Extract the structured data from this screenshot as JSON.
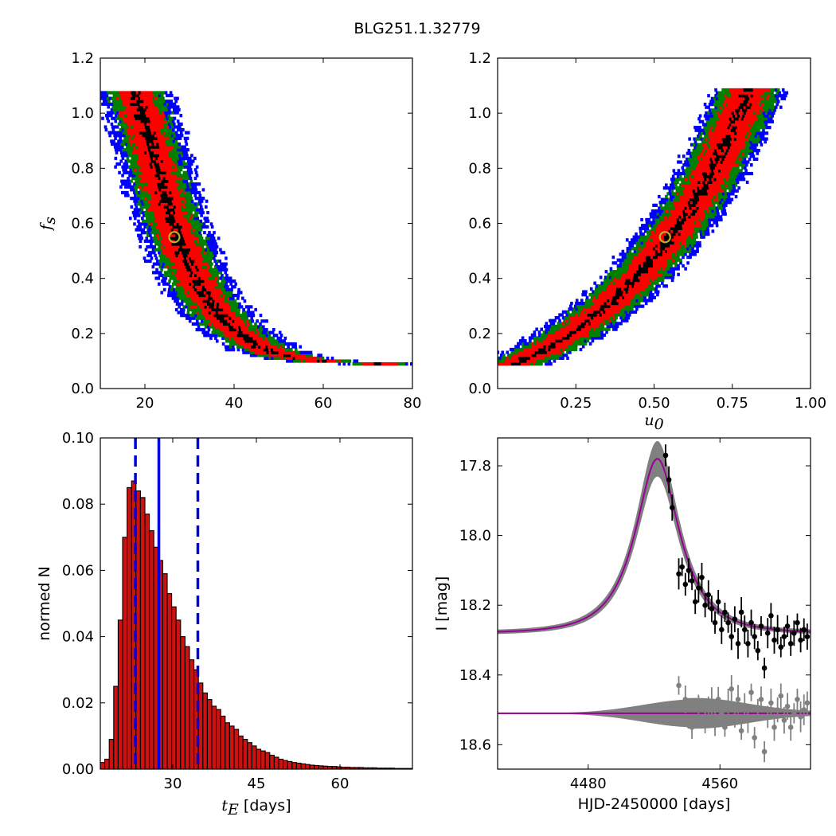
{
  "title": "BLG251.1.32779",
  "colors": {
    "sigma1": "#000000",
    "sigma2": "#ff0000",
    "sigma3": "#008000",
    "sigma4": "#0000ff",
    "best_fit_marker": "#bdb22a",
    "model": "#990099",
    "band": "#808080",
    "hist_fill": "#cc1111",
    "vline": "#0000dd"
  },
  "chart_data": [
    {
      "id": "fs-vs-tE",
      "type": "heatmap",
      "xlabel": "",
      "ylabel": "f_s",
      "xlim": [
        10,
        80
      ],
      "ylim": [
        0,
        1.2
      ],
      "xticks": [
        20,
        40,
        60,
        80
      ],
      "yticks": [
        0.0,
        0.2,
        0.4,
        0.6,
        0.8,
        1.0,
        1.2
      ],
      "ytick_labels": [
        "0.0",
        "0.2",
        "0.4",
        "0.6",
        "0.8",
        "1.0",
        "1.2"
      ],
      "best_fit": {
        "x": 26.6,
        "y": 0.55
      },
      "band_center": [
        [
          17.5,
          1.07
        ],
        [
          20,
          0.95
        ],
        [
          22,
          0.82
        ],
        [
          24,
          0.7
        ],
        [
          26.5,
          0.57
        ],
        [
          29,
          0.46
        ],
        [
          32,
          0.36
        ],
        [
          36,
          0.27
        ],
        [
          40,
          0.21
        ],
        [
          45,
          0.15
        ],
        [
          50,
          0.12
        ],
        [
          56,
          0.1
        ],
        [
          63,
          0.09
        ],
        [
          72,
          0.085
        ]
      ],
      "band_halfwidth": {
        "sigma1": 1.0,
        "sigma2": 4.0,
        "sigma3": 6.0,
        "sigma4": 8.5
      }
    },
    {
      "id": "fs-vs-u0",
      "type": "heatmap",
      "xlabel": "u_0",
      "ylabel": "",
      "xlim": [
        0.0,
        1.0
      ],
      "ylim": [
        0,
        1.2
      ],
      "xticks": [
        0.25,
        0.5,
        0.75,
        1.0
      ],
      "xtick_labels": [
        "0.25",
        "0.50",
        "0.75",
        "1.00"
      ],
      "yticks": [
        0.0,
        0.2,
        0.4,
        0.6,
        0.8,
        1.0,
        1.2
      ],
      "ytick_labels": [
        "0.0",
        "0.2",
        "0.4",
        "0.6",
        "0.8",
        "1.0",
        "1.2"
      ],
      "best_fit": {
        "x": 0.535,
        "y": 0.55
      },
      "band_center": [
        [
          0.05,
          0.085
        ],
        [
          0.15,
          0.14
        ],
        [
          0.25,
          0.21
        ],
        [
          0.35,
          0.3
        ],
        [
          0.45,
          0.41
        ],
        [
          0.53,
          0.52
        ],
        [
          0.6,
          0.63
        ],
        [
          0.66,
          0.74
        ],
        [
          0.71,
          0.85
        ],
        [
          0.76,
          0.97
        ],
        [
          0.8,
          1.08
        ]
      ],
      "band_halfwidth": {
        "sigma1": 0.015,
        "sigma2": 0.06,
        "sigma3": 0.09,
        "sigma4": 0.12
      }
    },
    {
      "id": "tE-histogram",
      "type": "bar",
      "xlabel": "t_E  [days]",
      "ylabel": "normed N",
      "xlim": [
        17,
        73
      ],
      "ylim": [
        0,
        0.1
      ],
      "xticks": [
        30,
        45,
        60
      ],
      "yticks": [
        0.0,
        0.02,
        0.04,
        0.06,
        0.08,
        0.1
      ],
      "ytick_labels": [
        "0.00",
        "0.02",
        "0.04",
        "0.06",
        "0.08",
        "0.10"
      ],
      "bin_start": 17,
      "bin_width": 0.8,
      "values": [
        0.002,
        0.003,
        0.009,
        0.025,
        0.045,
        0.07,
        0.085,
        0.087,
        0.084,
        0.082,
        0.077,
        0.072,
        0.067,
        0.063,
        0.059,
        0.053,
        0.049,
        0.045,
        0.04,
        0.037,
        0.033,
        0.03,
        0.026,
        0.023,
        0.021,
        0.019,
        0.018,
        0.016,
        0.014,
        0.013,
        0.012,
        0.01,
        0.009,
        0.008,
        0.007,
        0.006,
        0.0055,
        0.005,
        0.0042,
        0.0036,
        0.003,
        0.0026,
        0.0023,
        0.002,
        0.0018,
        0.0016,
        0.0014,
        0.0012,
        0.0011,
        0.001,
        0.0009,
        0.0008,
        0.0008,
        0.0007,
        0.0006,
        0.0006,
        0.0005,
        0.0005,
        0.0005,
        0.0004,
        0.0004,
        0.0004,
        0.0003,
        0.0003,
        0.0003,
        0.0003,
        0.0002,
        0.0002,
        0.0002,
        0.0002
      ],
      "vlines": {
        "median": 27.5,
        "low": 23.3,
        "high": 34.5
      }
    },
    {
      "id": "light-curve",
      "type": "line",
      "xlabel": "HJD-2450000 [days]",
      "ylabel": "I [mag]",
      "xlim": [
        4425,
        4615
      ],
      "ylim": [
        18.67,
        17.72
      ],
      "xticks": [
        4480,
        4560
      ],
      "yticks": [
        17.8,
        18.0,
        18.2,
        18.4,
        18.6
      ],
      "ytick_labels": [
        "17.8",
        "18.0",
        "18.2",
        "18.4",
        "18.6"
      ],
      "model": {
        "baseline": 18.28,
        "peak_mag": 17.78,
        "t0": 4522,
        "tE": 26.6,
        "u0": 0.535,
        "fs": 0.55
      },
      "residual_baseline": 18.51,
      "data_points": [
        [
          4527,
          17.77
        ],
        [
          4529,
          17.84
        ],
        [
          4531,
          17.92
        ],
        [
          4535,
          18.11
        ],
        [
          4537,
          18.09
        ],
        [
          4539,
          18.14
        ],
        [
          4541,
          18.1
        ],
        [
          4543,
          18.13
        ],
        [
          4545,
          18.19
        ],
        [
          4547,
          18.15
        ],
        [
          4549,
          18.12
        ],
        [
          4551,
          18.2
        ],
        [
          4553,
          18.17
        ],
        [
          4555,
          18.21
        ],
        [
          4557,
          18.25
        ],
        [
          4559,
          18.19
        ],
        [
          4561,
          18.27
        ],
        [
          4563,
          18.22
        ],
        [
          4565,
          18.25
        ],
        [
          4567,
          18.29
        ],
        [
          4569,
          18.24
        ],
        [
          4571,
          18.31
        ],
        [
          4573,
          18.22
        ],
        [
          4575,
          18.27
        ],
        [
          4577,
          18.31
        ],
        [
          4579,
          18.25
        ],
        [
          4581,
          18.29
        ],
        [
          4583,
          18.33
        ],
        [
          4585,
          18.26
        ],
        [
          4587,
          18.38
        ],
        [
          4589,
          18.28
        ],
        [
          4591,
          18.23
        ],
        [
          4593,
          18.3
        ],
        [
          4595,
          18.27
        ],
        [
          4597,
          18.32
        ],
        [
          4599,
          18.29
        ],
        [
          4601,
          18.26
        ],
        [
          4603,
          18.31
        ],
        [
          4605,
          18.28
        ],
        [
          4607,
          18.25
        ],
        [
          4609,
          18.3
        ],
        [
          4611,
          18.27
        ],
        [
          4613,
          18.29
        ]
      ],
      "residual_points": [
        [
          4535,
          18.43
        ],
        [
          4539,
          18.47
        ],
        [
          4543,
          18.55
        ],
        [
          4547,
          18.5
        ],
        [
          4551,
          18.53
        ],
        [
          4553,
          18.49
        ],
        [
          4555,
          18.48
        ],
        [
          4557,
          18.54
        ],
        [
          4559,
          18.47
        ],
        [
          4561,
          18.51
        ],
        [
          4563,
          18.55
        ],
        [
          4565,
          18.48
        ],
        [
          4567,
          18.44
        ],
        [
          4569,
          18.52
        ],
        [
          4571,
          18.47
        ],
        [
          4573,
          18.56
        ],
        [
          4575,
          18.49
        ],
        [
          4577,
          18.53
        ],
        [
          4579,
          18.45
        ],
        [
          4581,
          18.58
        ],
        [
          4583,
          18.5
        ],
        [
          4585,
          18.47
        ],
        [
          4587,
          18.62
        ],
        [
          4589,
          18.52
        ],
        [
          4591,
          18.48
        ],
        [
          4593,
          18.55
        ],
        [
          4595,
          18.5
        ],
        [
          4597,
          18.46
        ],
        [
          4599,
          18.53
        ],
        [
          4601,
          18.49
        ],
        [
          4603,
          18.55
        ],
        [
          4605,
          18.51
        ],
        [
          4607,
          18.47
        ],
        [
          4609,
          18.52
        ],
        [
          4611,
          18.5
        ],
        [
          4613,
          18.48
        ]
      ]
    }
  ]
}
